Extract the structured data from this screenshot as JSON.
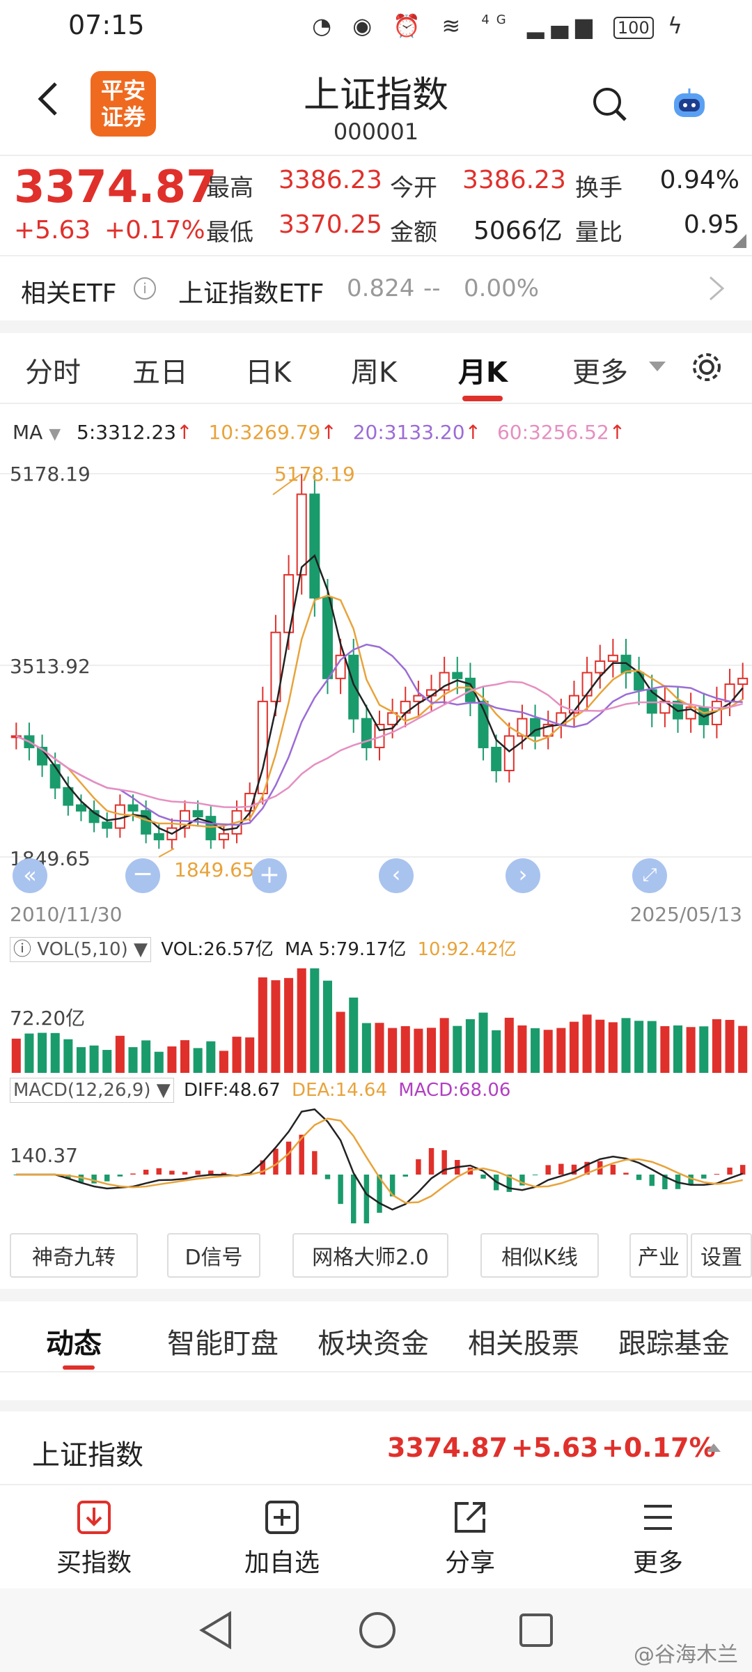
{
  "status": {
    "time": "07:15",
    "battery": "100",
    "network": "4G"
  },
  "header": {
    "logo_line1": "平安",
    "logo_line2": "证券",
    "title": "上证指数",
    "code": "000001"
  },
  "quote": {
    "price": "3374.87",
    "change": "+5.63",
    "change_pct": "+0.17%",
    "high_label": "最高",
    "high": "3386.23",
    "open_label": "今开",
    "open": "3386.23",
    "turnover_label": "换手",
    "turnover": "0.94%",
    "low_label": "最低",
    "low": "3370.25",
    "amount_label": "金额",
    "amount": "5066亿",
    "volratio_label": "量比",
    "volratio": "0.95"
  },
  "etf": {
    "label": "相关ETF",
    "name": "上证指数ETF",
    "price": "0.824",
    "sep": "--",
    "pct": "0.00%"
  },
  "tabs": [
    "分时",
    "五日",
    "日K",
    "周K",
    "月K",
    "更多"
  ],
  "ma": {
    "label": "MA",
    "ma5": "5:3312.23",
    "ma10": "10:3269.79",
    "ma20": "20:3133.20",
    "ma60": "60:3256.52"
  },
  "chart_axis": {
    "top": "5178.19",
    "mid": "3513.92",
    "bottom": "1849.65",
    "max_label": "5178.19",
    "min_label": "1849.65",
    "date_start": "2010/11/30",
    "date_end": "2025/05/13"
  },
  "vol": {
    "selector": "VOL(5,10)",
    "vol": "VOL:26.57亿",
    "ma5": "MA 5:79.17亿",
    "ma10": "10:92.42亿",
    "axis": "72.20亿"
  },
  "macd": {
    "selector": "MACD(12,26,9)",
    "diff": "DIFF:48.67",
    "dea": "DEA:14.64",
    "macd": "MACD:68.06",
    "axis": "140.37"
  },
  "tools": [
    "神奇九转",
    "D信号",
    "网格大师2.0",
    "相似K线",
    "产业",
    "设置"
  ],
  "section_tabs": [
    "动态",
    "智能盯盘",
    "板块资金",
    "相关股票",
    "跟踪基金"
  ],
  "ticker": {
    "name": "上证指数",
    "price": "3374.87",
    "change": "+5.63",
    "pct": "+0.17%"
  },
  "bottom_nav": [
    "买指数",
    "加自选",
    "分享",
    "更多"
  ],
  "watermark": "@谷海木兰",
  "colors": {
    "up": "#e0302b",
    "down": "#1a9b6c",
    "ma5": "#222222",
    "ma10": "#e8a33a",
    "ma20": "#9b6cd6",
    "ma60": "#e58fc1",
    "brand": "#ef6a1f"
  },
  "chart_data": {
    "type": "candlestick",
    "x_range": [
      "2010/11/30",
      "2025/05/13"
    ],
    "y_range": [
      1849.65,
      5178.19
    ],
    "max": 5178.19,
    "min": 1849.65,
    "approx_close_series": [
      2900,
      2800,
      2650,
      2450,
      2300,
      2250,
      2150,
      2100,
      2300,
      2250,
      2050,
      2000,
      2100,
      2250,
      2200,
      2000,
      2050,
      2250,
      2400,
      3200,
      3800,
      4300,
      5000,
      4100,
      3400,
      3600,
      3050,
      2800,
      3000,
      3100,
      3200,
      3250,
      3300,
      3450,
      3400,
      3200,
      2800,
      2600,
      2900,
      3050,
      2900,
      3000,
      3100,
      3250,
      3450,
      3550,
      3600,
      3450,
      3300,
      3100,
      3200,
      3050,
      3150,
      3000,
      3200,
      3350,
      3400
    ]
  }
}
